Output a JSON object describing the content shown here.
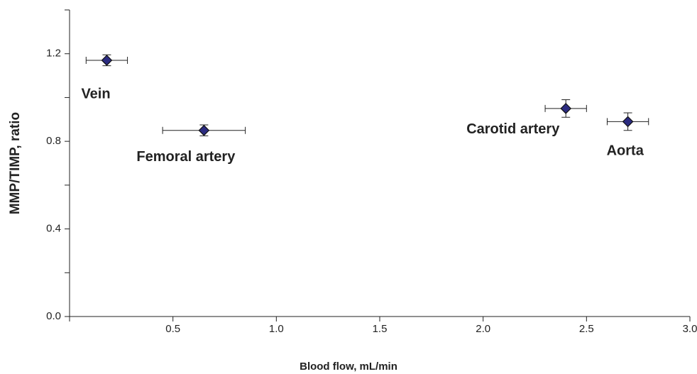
{
  "chart_data": {
    "type": "scatter",
    "xlabel": "Blood flow, mL/min",
    "ylabel": "MMP/TIMP, ratio",
    "xlim": [
      0,
      3.0
    ],
    "xticks": [
      0.5,
      {
        "value": 1,
        "label": "1.0"
      },
      1.5,
      {
        "value": 2,
        "label": "2.0"
      },
      2.5,
      {
        "value": 3,
        "label": "3.0"
      }
    ],
    "ylim": [
      0,
      1.4
    ],
    "yticks": [
      {
        "value": 0,
        "label": "0.0"
      },
      0.4,
      0.8,
      1.2
    ],
    "yminor_ticks": [
      0.2,
      0.6,
      {
        "value": 1,
        "label": "1.0"
      },
      1.4
    ],
    "color": "#2b2b80",
    "labels": [
      "Vein",
      "Femoral artery",
      "Carotid artery",
      "Aorta"
    ],
    "x": [
      0.18,
      0.65,
      2.4,
      2.7
    ],
    "values": [
      1.17,
      0.85,
      0.95,
      0.89
    ],
    "xerr": [
      0.1,
      0.2,
      0.1,
      0.1
    ],
    "yerr": [
      0.025,
      0.025,
      0.04,
      0.04
    ]
  }
}
